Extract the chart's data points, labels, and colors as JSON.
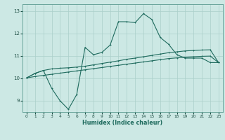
{
  "xlabel": "Humidex (Indice chaleur)",
  "bg_color": "#cce8e4",
  "grid_color": "#aacfca",
  "line_color": "#1f6b5e",
  "xlim": [
    -0.5,
    23.5
  ],
  "ylim": [
    8.5,
    13.3
  ],
  "yticks": [
    9,
    10,
    11,
    12,
    13
  ],
  "xticks": [
    0,
    1,
    2,
    3,
    4,
    5,
    6,
    7,
    8,
    9,
    10,
    11,
    12,
    13,
    14,
    15,
    16,
    17,
    18,
    19,
    20,
    21,
    22,
    23
  ],
  "curve1_x": [
    0,
    1,
    2,
    3,
    4,
    5,
    6,
    7,
    8,
    9,
    10,
    11,
    12,
    13,
    14,
    15,
    16,
    17,
    18,
    19,
    20,
    21,
    22,
    23
  ],
  "curve1_y": [
    10.02,
    10.08,
    10.13,
    10.18,
    10.23,
    10.28,
    10.33,
    10.38,
    10.43,
    10.48,
    10.53,
    10.58,
    10.63,
    10.68,
    10.73,
    10.78,
    10.83,
    10.88,
    10.91,
    10.94,
    10.96,
    10.98,
    10.99,
    10.7
  ],
  "curve2_x": [
    0,
    1,
    2,
    3,
    4,
    5,
    6,
    7,
    8,
    9,
    10,
    11,
    12,
    13,
    14,
    15,
    16,
    17,
    18,
    19,
    20,
    21,
    22,
    23
  ],
  "curve2_y": [
    10.02,
    10.22,
    10.35,
    10.42,
    10.45,
    10.47,
    10.5,
    10.54,
    10.6,
    10.66,
    10.72,
    10.78,
    10.85,
    10.9,
    10.96,
    11.02,
    11.08,
    11.14,
    11.18,
    11.22,
    11.24,
    11.26,
    11.27,
    10.7
  ],
  "curve3_x": [
    0,
    1,
    2,
    3,
    4,
    5,
    6,
    7,
    8,
    9,
    10,
    11,
    12,
    13,
    14,
    15,
    16,
    17,
    18,
    19,
    20,
    21,
    22,
    23
  ],
  "curve3_y": [
    10.02,
    10.22,
    10.35,
    9.55,
    9.0,
    8.62,
    9.28,
    11.38,
    11.05,
    11.15,
    11.48,
    12.52,
    12.52,
    12.48,
    12.88,
    12.62,
    11.82,
    11.52,
    11.05,
    10.9,
    10.9,
    10.9,
    10.7,
    10.7
  ]
}
